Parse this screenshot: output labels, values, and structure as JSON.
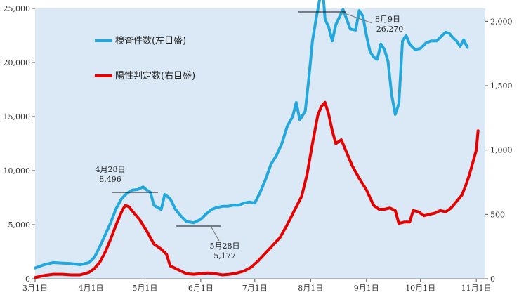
{
  "chart_data": {
    "type": "line",
    "x_tick_labels": [
      "3月1日",
      "4月1日",
      "5月1日",
      "6月1日",
      "7月1日",
      "8月1日",
      "9月1日",
      "10月1日",
      "11月1日"
    ],
    "y_left": {
      "lim": [
        0,
        25000
      ],
      "ticks": [
        0,
        5000,
        10000,
        15000,
        20000,
        25000
      ],
      "tick_labels": [
        "0",
        "5,000",
        "10,000",
        "15,000",
        "20,000",
        "25,000"
      ]
    },
    "y_right": {
      "lim": [
        0,
        2100
      ],
      "ticks": [
        0,
        500,
        1000,
        1500,
        2000
      ],
      "tick_labels": [
        "0",
        "500",
        "1,000",
        "1,500",
        "2,000"
      ]
    },
    "grid": false,
    "series": [
      {
        "name": "検査件数(左目盛)",
        "axis": "left",
        "color": "#22a8dc",
        "points": [
          [
            0,
            1000
          ],
          [
            5,
            1300
          ],
          [
            10,
            1500
          ],
          [
            15,
            1450
          ],
          [
            20,
            1400
          ],
          [
            25,
            1300
          ],
          [
            30,
            1500
          ],
          [
            33,
            2000
          ],
          [
            36,
            3000
          ],
          [
            39,
            4100
          ],
          [
            42,
            5200
          ],
          [
            45,
            6500
          ],
          [
            48,
            7400
          ],
          [
            51,
            7900
          ],
          [
            54,
            8200
          ],
          [
            57,
            8250
          ],
          [
            60,
            8496
          ],
          [
            62,
            8200
          ],
          [
            64,
            8000
          ],
          [
            66,
            6800
          ],
          [
            68,
            6600
          ],
          [
            70,
            6400
          ],
          [
            72,
            7800
          ],
          [
            75,
            7400
          ],
          [
            78,
            6400
          ],
          [
            81,
            5800
          ],
          [
            84,
            5300
          ],
          [
            88,
            5177
          ],
          [
            92,
            5500
          ],
          [
            95,
            6000
          ],
          [
            98,
            6400
          ],
          [
            101,
            6600
          ],
          [
            104,
            6700
          ],
          [
            107,
            6700
          ],
          [
            110,
            6800
          ],
          [
            113,
            6800
          ],
          [
            116,
            7000
          ],
          [
            119,
            7100
          ],
          [
            122,
            7000
          ],
          [
            125,
            8000
          ],
          [
            128,
            9200
          ],
          [
            131,
            10600
          ],
          [
            134,
            11400
          ],
          [
            137,
            12500
          ],
          [
            140,
            14100
          ],
          [
            143,
            15000
          ],
          [
            145,
            16300
          ],
          [
            147,
            14700
          ],
          [
            150,
            15500
          ],
          [
            152,
            18500
          ],
          [
            154,
            22000
          ],
          [
            156,
            24000
          ],
          [
            158,
            25800
          ],
          [
            160,
            26270
          ],
          [
            161,
            24000
          ],
          [
            163,
            23300
          ],
          [
            165,
            22000
          ],
          [
            167,
            23500
          ],
          [
            169,
            24200
          ],
          [
            171,
            24900
          ],
          [
            173,
            24000
          ],
          [
            175,
            23100
          ],
          [
            178,
            23000
          ],
          [
            180,
            24800
          ],
          [
            182,
            24300
          ],
          [
            184,
            22500
          ],
          [
            186,
            21000
          ],
          [
            188,
            20500
          ],
          [
            190,
            20300
          ],
          [
            192,
            21700
          ],
          [
            194,
            21200
          ],
          [
            196,
            20100
          ],
          [
            198,
            17000
          ],
          [
            200,
            15200
          ],
          [
            202,
            16200
          ],
          [
            204,
            22000
          ],
          [
            206,
            22500
          ],
          [
            208,
            21700
          ],
          [
            211,
            21200
          ],
          [
            214,
            21300
          ],
          [
            217,
            21800
          ],
          [
            220,
            22000
          ],
          [
            223,
            22000
          ],
          [
            226,
            22500
          ],
          [
            228,
            22800
          ],
          [
            230,
            22700
          ],
          [
            232,
            22300
          ],
          [
            234,
            22000
          ],
          [
            236,
            21500
          ],
          [
            238,
            22100
          ],
          [
            240,
            21400
          ]
        ]
      },
      {
        "name": "陽性判定数(右目盛)",
        "axis": "right",
        "color": "#e60000",
        "points": [
          [
            0,
            10
          ],
          [
            5,
            25
          ],
          [
            10,
            35
          ],
          [
            15,
            35
          ],
          [
            20,
            30
          ],
          [
            25,
            30
          ],
          [
            30,
            50
          ],
          [
            33,
            80
          ],
          [
            36,
            130
          ],
          [
            39,
            210
          ],
          [
            42,
            310
          ],
          [
            45,
            420
          ],
          [
            48,
            520
          ],
          [
            50,
            570
          ],
          [
            52,
            560
          ],
          [
            55,
            510
          ],
          [
            58,
            460
          ],
          [
            62,
            370
          ],
          [
            66,
            270
          ],
          [
            70,
            230
          ],
          [
            73,
            190
          ],
          [
            75,
            100
          ],
          [
            78,
            80
          ],
          [
            81,
            60
          ],
          [
            84,
            40
          ],
          [
            88,
            35
          ],
          [
            92,
            40
          ],
          [
            96,
            45
          ],
          [
            100,
            40
          ],
          [
            104,
            30
          ],
          [
            108,
            35
          ],
          [
            112,
            45
          ],
          [
            116,
            60
          ],
          [
            120,
            90
          ],
          [
            124,
            140
          ],
          [
            128,
            200
          ],
          [
            132,
            260
          ],
          [
            136,
            320
          ],
          [
            140,
            420
          ],
          [
            144,
            530
          ],
          [
            148,
            640
          ],
          [
            151,
            810
          ],
          [
            154,
            1050
          ],
          [
            157,
            1270
          ],
          [
            159,
            1340
          ],
          [
            161,
            1370
          ],
          [
            163,
            1280
          ],
          [
            165,
            1150
          ],
          [
            167,
            1050
          ],
          [
            170,
            1080
          ],
          [
            173,
            980
          ],
          [
            176,
            880
          ],
          [
            180,
            780
          ],
          [
            184,
            690
          ],
          [
            188,
            570
          ],
          [
            191,
            540
          ],
          [
            194,
            540
          ],
          [
            197,
            550
          ],
          [
            200,
            530
          ],
          [
            202,
            430
          ],
          [
            205,
            440
          ],
          [
            208,
            440
          ],
          [
            210,
            530
          ],
          [
            213,
            520
          ],
          [
            216,
            490
          ],
          [
            219,
            500
          ],
          [
            222,
            510
          ],
          [
            225,
            530
          ],
          [
            228,
            520
          ],
          [
            231,
            550
          ],
          [
            234,
            600
          ],
          [
            237,
            650
          ],
          [
            239,
            720
          ],
          [
            241,
            800
          ],
          [
            243,
            900
          ],
          [
            245,
            1000
          ],
          [
            246,
            1150
          ]
        ]
      }
    ],
    "annotations": [
      {
        "date_label": "4月28日",
        "value_label": "8,496"
      },
      {
        "date_label": "5月28日",
        "value_label": "5,177"
      },
      {
        "date_label": "8月9日",
        "value_label": "26,270"
      }
    ],
    "legend": {
      "placement": "top-left"
    }
  }
}
